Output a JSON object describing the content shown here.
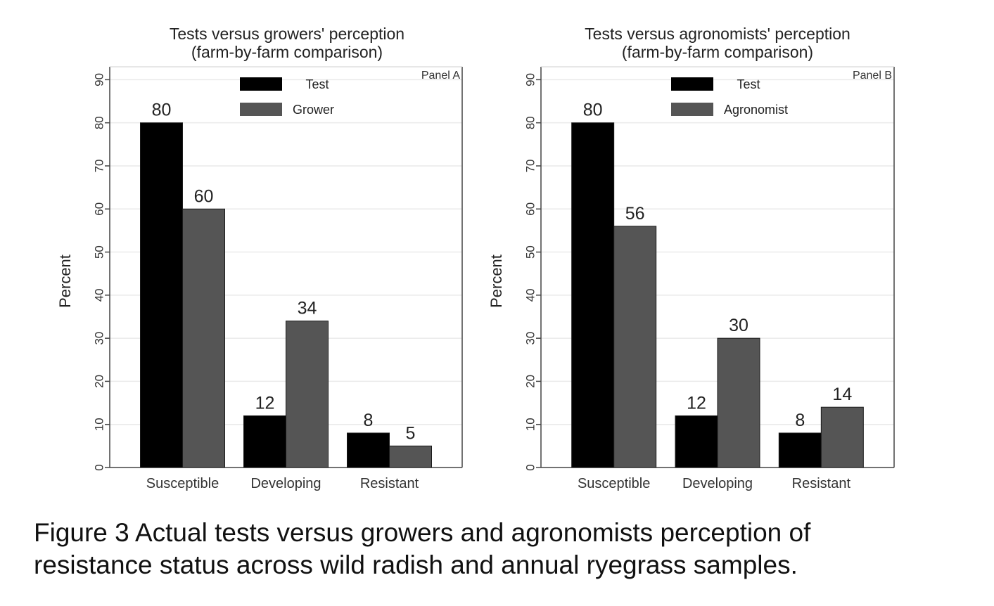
{
  "chart_data": [
    {
      "type": "bar",
      "title": "Tests versus growers' perception",
      "subtitle": "(farm-by-farm comparison)",
      "panel_label": "Panel A",
      "xlabel": "",
      "ylabel": "Percent",
      "ylim": [
        0,
        93
      ],
      "yticks": [
        "0",
        "10",
        "20",
        "30",
        "40",
        "50",
        "60",
        "70",
        "80",
        "90"
      ],
      "grid": true,
      "legend_placement": "top-center",
      "categories": [
        "Susceptible",
        "Developing",
        "Resistant"
      ],
      "series": [
        {
          "name": "Test",
          "color": "#000000",
          "values": [
            80,
            12,
            8
          ],
          "labels": [
            "80",
            "12",
            "8"
          ]
        },
        {
          "name": "Grower",
          "color": "#555555",
          "values": [
            60,
            34,
            5
          ],
          "labels": [
            "60",
            "34",
            "5"
          ]
        }
      ]
    },
    {
      "type": "bar",
      "title": "Tests versus agronomists' perception",
      "subtitle": "(farm-by-farm comparison)",
      "panel_label": "Panel B",
      "xlabel": "",
      "ylabel": "Percent",
      "ylim": [
        0,
        93
      ],
      "yticks": [
        "0",
        "10",
        "20",
        "30",
        "40",
        "50",
        "60",
        "70",
        "80",
        "90"
      ],
      "grid": true,
      "legend_placement": "top-center",
      "categories": [
        "Susceptible",
        "Developing",
        "Resistant"
      ],
      "series": [
        {
          "name": "Test",
          "color": "#000000",
          "values": [
            80,
            12,
            8
          ],
          "labels": [
            "80",
            "12",
            "8"
          ]
        },
        {
          "name": "Agronomist",
          "color": "#555555",
          "values": [
            56,
            30,
            14
          ],
          "labels": [
            "56",
            "30",
            "14"
          ]
        }
      ]
    }
  ],
  "caption": {
    "line1": "Figure 3 Actual tests versus growers and agronomists perception of",
    "line2": "resistance status across wild radish and annual ryegrass samples."
  }
}
